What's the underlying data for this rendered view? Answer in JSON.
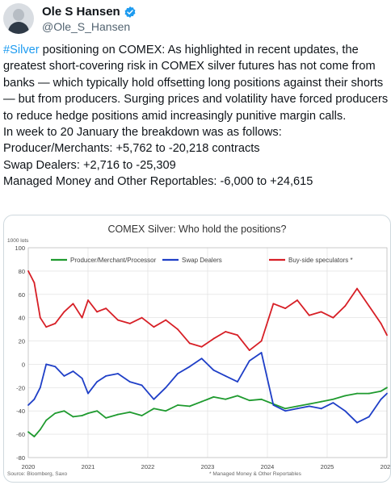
{
  "author": {
    "name": "Ole S Hansen",
    "handle": "@Ole_S_Hansen",
    "verified_icon": "verified-badge-icon"
  },
  "tweet": {
    "hashtag": "#Silver",
    "intro": " positioning on COMEX: As highlighted in recent updates, the greatest short-covering risk in COMEX silver futures has not come from banks — which typically hold offsetting long positions against their shorts — but from producers. Surging prices and volatility have forced producers to reduce hedge positions amid increasingly punitive margin calls.",
    "lines": [
      "In week to 20 January the breakdown was as follows:",
      "Producer/Merchants: +5,762 to -20,218 contracts",
      "Swap Dealers: +2,716 to -25,309",
      "Managed Money and Other Reportables: -6,000 to +24,615"
    ],
    "hashtag_color": "#1d9bf0"
  },
  "chart_data": {
    "type": "line",
    "title": "COMEX Silver: Who hold the positions?",
    "units_label": "1000 lots",
    "ylim": [
      -80,
      100
    ],
    "yticks": [
      "100",
      "80",
      "60",
      "40",
      "20",
      "0",
      "-20",
      "-40",
      "-60",
      "-80"
    ],
    "xlim": [
      2020,
      2026
    ],
    "xticks": [
      "2020",
      "2021",
      "2022",
      "2023",
      "2024",
      "2025",
      "2026"
    ],
    "grid": true,
    "legend_position": "top",
    "source": "Source: Bloomberg, Saxo",
    "footnote": "* Managed Money & Other Reportables",
    "series": [
      {
        "name": "Producer/Merchant/Processor",
        "color": "#1e9a2e",
        "x": [
          2020.0,
          2020.1,
          2020.2,
          2020.3,
          2020.45,
          2020.6,
          2020.75,
          2020.9,
          2021.0,
          2021.15,
          2021.3,
          2021.5,
          2021.7,
          2021.9,
          2022.1,
          2022.3,
          2022.5,
          2022.7,
          2022.9,
          2023.1,
          2023.3,
          2023.5,
          2023.7,
          2023.9,
          2024.1,
          2024.3,
          2024.5,
          2024.7,
          2024.9,
          2025.1,
          2025.3,
          2025.5,
          2025.7,
          2025.9,
          2026.0
        ],
        "y": [
          -58,
          -62,
          -56,
          -48,
          -42,
          -40,
          -45,
          -44,
          -42,
          -40,
          -46,
          -43,
          -41,
          -44,
          -38,
          -40,
          -35,
          -36,
          -32,
          -28,
          -30,
          -27,
          -31,
          -30,
          -34,
          -38,
          -36,
          -34,
          -32,
          -30,
          -27,
          -25,
          -25,
          -23,
          -20
        ]
      },
      {
        "name": "Swap Dealers",
        "color": "#1f3fc7",
        "x": [
          2020.0,
          2020.1,
          2020.2,
          2020.3,
          2020.45,
          2020.6,
          2020.75,
          2020.9,
          2021.0,
          2021.15,
          2021.3,
          2021.5,
          2021.7,
          2021.9,
          2022.1,
          2022.3,
          2022.5,
          2022.7,
          2022.9,
          2023.1,
          2023.3,
          2023.5,
          2023.7,
          2023.9,
          2024.1,
          2024.3,
          2024.5,
          2024.7,
          2024.9,
          2025.1,
          2025.3,
          2025.5,
          2025.7,
          2025.9,
          2026.0
        ],
        "y": [
          -35,
          -30,
          -20,
          0,
          -2,
          -10,
          -6,
          -12,
          -25,
          -15,
          -10,
          -8,
          -15,
          -18,
          -30,
          -20,
          -8,
          -2,
          5,
          -5,
          -10,
          -15,
          3,
          10,
          -35,
          -40,
          -38,
          -36,
          -38,
          -33,
          -40,
          -50,
          -45,
          -30,
          -25
        ]
      },
      {
        "name": "Buy-side speculators *",
        "color": "#d71f26",
        "x": [
          2020.0,
          2020.1,
          2020.2,
          2020.3,
          2020.45,
          2020.6,
          2020.75,
          2020.9,
          2021.0,
          2021.15,
          2021.3,
          2021.5,
          2021.7,
          2021.9,
          2022.1,
          2022.3,
          2022.5,
          2022.7,
          2022.9,
          2023.1,
          2023.3,
          2023.5,
          2023.7,
          2023.9,
          2024.1,
          2024.3,
          2024.5,
          2024.7,
          2024.9,
          2025.1,
          2025.3,
          2025.5,
          2025.7,
          2025.9,
          2026.0
        ],
        "y": [
          80,
          70,
          40,
          32,
          35,
          45,
          52,
          40,
          55,
          45,
          48,
          38,
          35,
          40,
          32,
          38,
          30,
          18,
          15,
          22,
          28,
          25,
          12,
          20,
          52,
          48,
          55,
          42,
          45,
          40,
          50,
          65,
          50,
          35,
          25
        ]
      }
    ]
  }
}
